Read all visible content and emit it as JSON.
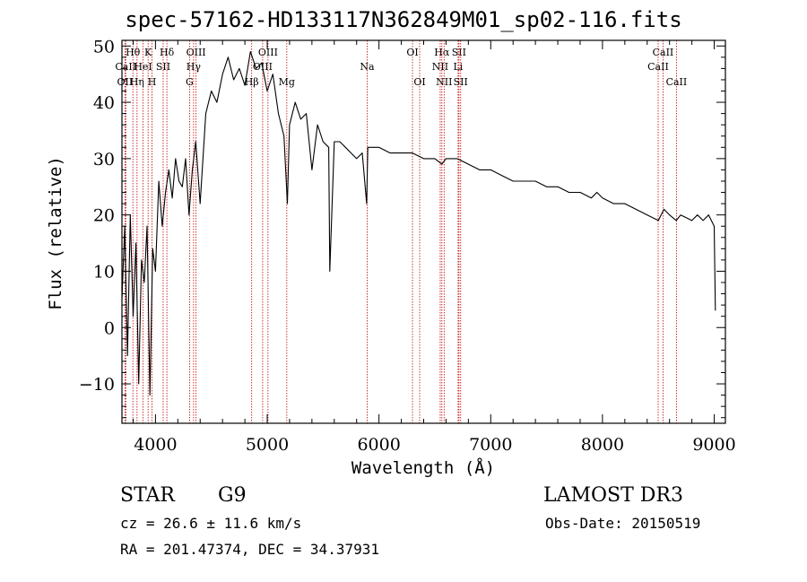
{
  "chart_data": {
    "type": "line",
    "title": "spec-57162-HD133117N362849M01_sp02-116.fits",
    "xlabel": "Wavelength (Å)",
    "ylabel": "Flux (relative)",
    "xlim": [
      3700,
      9100
    ],
    "ylim": [
      -17,
      51
    ],
    "xticks": [
      4000,
      5000,
      6000,
      7000,
      8000,
      9000
    ],
    "xtick_labels": [
      "4000",
      "5000",
      "6000",
      "7000",
      "8000",
      "9000"
    ],
    "yticks": [
      -10,
      0,
      10,
      20,
      30,
      40,
      50
    ],
    "ytick_labels": [
      "−10",
      "0",
      "10",
      "20",
      "30",
      "40",
      "50"
    ],
    "series": [
      {
        "name": "spectrum",
        "x": [
          3700,
          3725,
          3750,
          3775,
          3800,
          3825,
          3850,
          3875,
          3900,
          3925,
          3950,
          3975,
          4000,
          4030,
          4060,
          4090,
          4120,
          4150,
          4180,
          4210,
          4240,
          4270,
          4300,
          4330,
          4360,
          4400,
          4450,
          4500,
          4550,
          4600,
          4650,
          4700,
          4750,
          4800,
          4850,
          4900,
          4950,
          5000,
          5050,
          5100,
          5150,
          5180,
          5200,
          5250,
          5300,
          5350,
          5400,
          5450,
          5500,
          5550,
          5560,
          5600,
          5650,
          5700,
          5750,
          5800,
          5850,
          5890,
          5900,
          5950,
          6000,
          6100,
          6200,
          6300,
          6400,
          6500,
          6563,
          6600,
          6700,
          6800,
          6900,
          7000,
          7100,
          7200,
          7300,
          7400,
          7500,
          7600,
          7700,
          7800,
          7900,
          7950,
          8000,
          8100,
          8200,
          8300,
          8400,
          8500,
          8550,
          8600,
          8660,
          8700,
          8800,
          8850,
          8900,
          8950,
          9000,
          9010
        ],
        "y": [
          5,
          18,
          -5,
          20,
          2,
          15,
          -10,
          12,
          8,
          18,
          -12,
          14,
          10,
          26,
          18,
          24,
          28,
          23,
          30,
          26,
          25,
          30,
          20,
          28,
          33,
          22,
          38,
          42,
          40,
          45,
          48,
          44,
          46,
          43,
          49,
          46,
          47,
          42,
          45,
          38,
          34,
          22,
          36,
          40,
          37,
          38,
          28,
          36,
          33,
          32,
          10,
          33,
          33,
          32,
          31,
          30,
          31,
          22,
          32,
          32,
          32,
          31,
          31,
          31,
          30,
          30,
          29,
          30,
          30,
          29,
          28,
          28,
          27,
          26,
          26,
          26,
          25,
          25,
          24,
          24,
          23,
          24,
          23,
          22,
          22,
          21,
          20,
          19,
          21,
          20,
          19,
          20,
          19,
          20,
          19,
          20,
          18,
          3
        ]
      }
    ],
    "line_markers": [
      {
        "label": "Hθ",
        "x": 3798,
        "row": 1
      },
      {
        "label": "CaII",
        "x": 3734,
        "row": 2
      },
      {
        "label": "OII",
        "x": 3727,
        "row": 3
      },
      {
        "label": "K",
        "x": 3934,
        "row": 1
      },
      {
        "label": "HeI",
        "x": 3889,
        "row": 2
      },
      {
        "label": "Hη",
        "x": 3835,
        "row": 3
      },
      {
        "label": "H",
        "x": 3969,
        "row": 3
      },
      {
        "label": "Hδ",
        "x": 4102,
        "row": 1
      },
      {
        "label": "SII",
        "x": 4069,
        "row": 2
      },
      {
        "label": "OIII",
        "x": 4363,
        "row": 1
      },
      {
        "label": "Hγ",
        "x": 4341,
        "row": 2
      },
      {
        "label": "G",
        "x": 4305,
        "row": 3
      },
      {
        "label": "OIII",
        "x": 5007,
        "row": 1
      },
      {
        "label": "OIII",
        "x": 4959,
        "row": 2
      },
      {
        "label": "Hβ",
        "x": 4861,
        "row": 3
      },
      {
        "label": "Mg",
        "x": 5175,
        "row": 3
      },
      {
        "label": "Na",
        "x": 5894,
        "row": 2
      },
      {
        "label": "OI",
        "x": 6300,
        "row": 1
      },
      {
        "label": "OI",
        "x": 6364,
        "row": 3
      },
      {
        "label": "Hα",
        "x": 6563,
        "row": 1
      },
      {
        "label": "SII",
        "x": 6716,
        "row": 1
      },
      {
        "label": "NII",
        "x": 6548,
        "row": 2
      },
      {
        "label": "Li",
        "x": 6708,
        "row": 2
      },
      {
        "label": "NII",
        "x": 6583,
        "row": 3
      },
      {
        "label": "SII",
        "x": 6731,
        "row": 3
      },
      {
        "label": "CaII",
        "x": 8542,
        "row": 1
      },
      {
        "label": "CaII",
        "x": 8498,
        "row": 2
      },
      {
        "label": "CaII",
        "x": 8662,
        "row": 3
      }
    ],
    "colors": {
      "spectrum": "#000000",
      "markers": "#c00000",
      "frame": "#000000"
    }
  },
  "info": {
    "object_class": "STAR",
    "subclass": "G9",
    "survey": "LAMOST DR3",
    "redshift_line": "cz = 26.6 ± 11.6 km/s",
    "obs_date_line": "Obs-Date: 20150519",
    "coords_line": "RA = 201.47374, DEC =  34.37931"
  }
}
